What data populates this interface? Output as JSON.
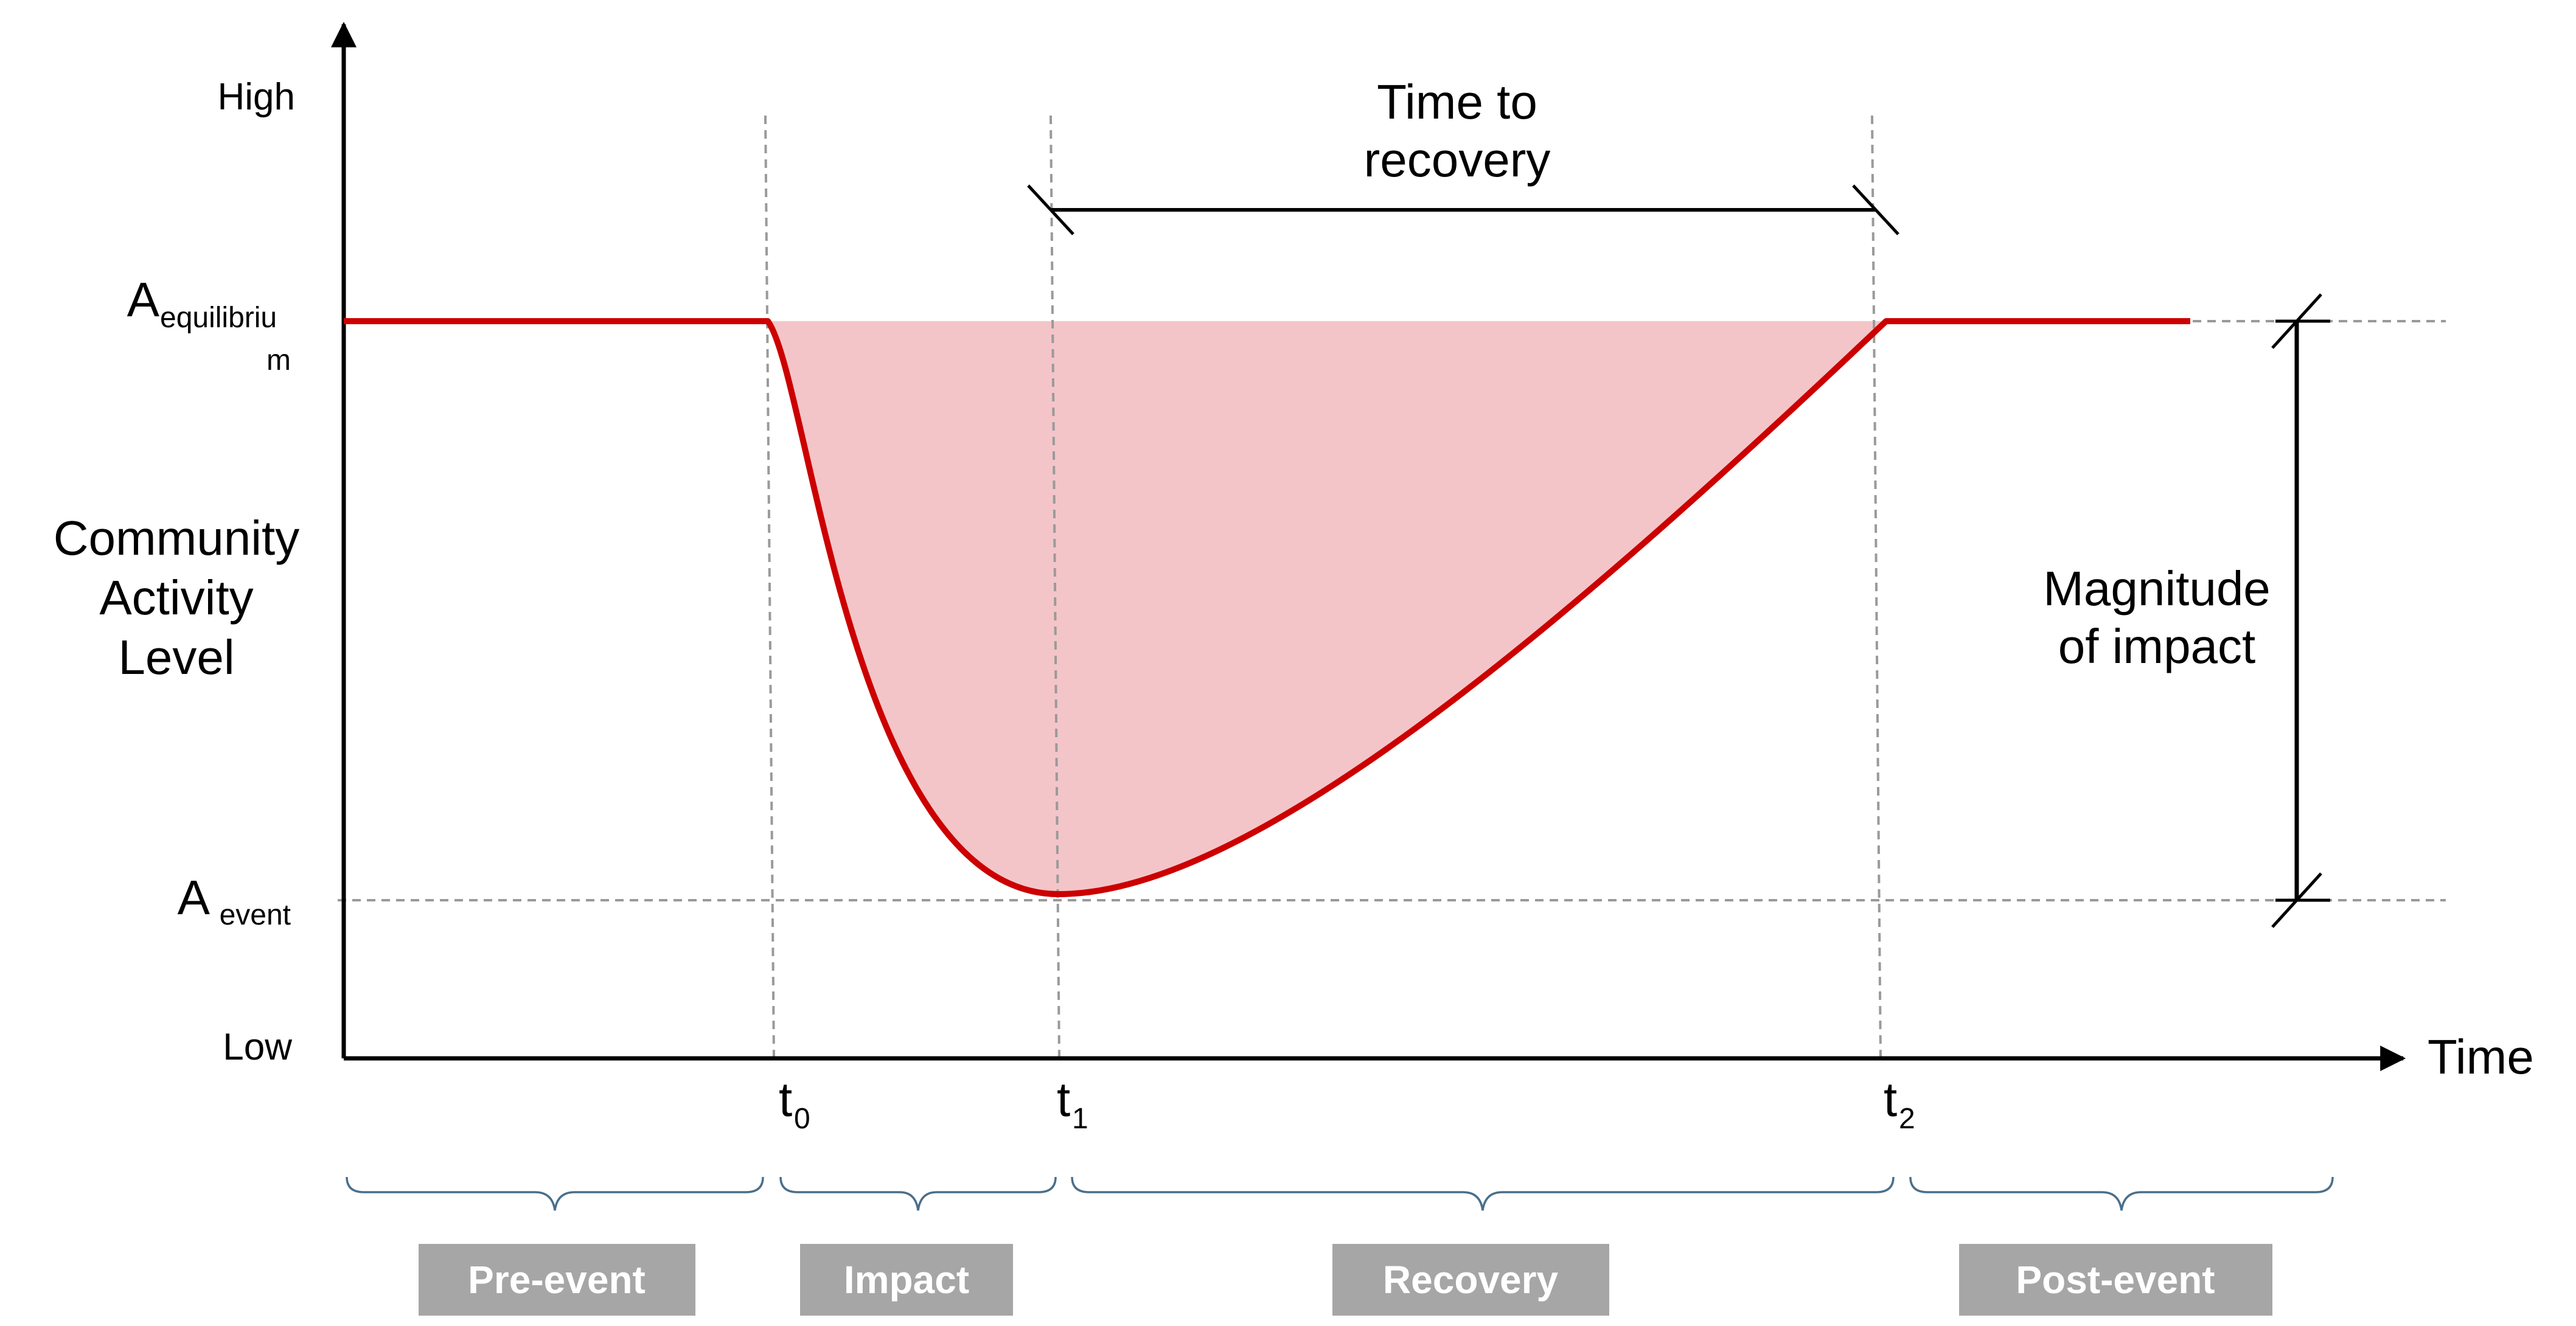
{
  "axis": {
    "y_title_lines": [
      "Community",
      "Activity",
      "Level"
    ],
    "y_high": "High",
    "y_low": "Low",
    "x_title": "Time"
  },
  "levels": {
    "equilibrium": {
      "base": "A",
      "sub_1": "equilibriu",
      "sub_2": "m"
    },
    "event": {
      "base": "A",
      "sub": "event"
    }
  },
  "time_marks": [
    {
      "base": "t",
      "sub": "0"
    },
    {
      "base": "t",
      "sub": "1"
    },
    {
      "base": "t",
      "sub": "2"
    }
  ],
  "annotations": {
    "time_to_recovery": [
      "Time to",
      "recovery"
    ],
    "magnitude_of_impact": [
      "Magnitude",
      "of impact"
    ]
  },
  "phases": [
    "Pre-event",
    "Impact",
    "Recovery",
    "Post-event"
  ],
  "colors": {
    "curve": "#cc0000",
    "fill": "#f4c5c8",
    "phase_box": "#a6a6a6",
    "dashed": "#9a9a9a",
    "brace": "#4a6f8a"
  }
}
